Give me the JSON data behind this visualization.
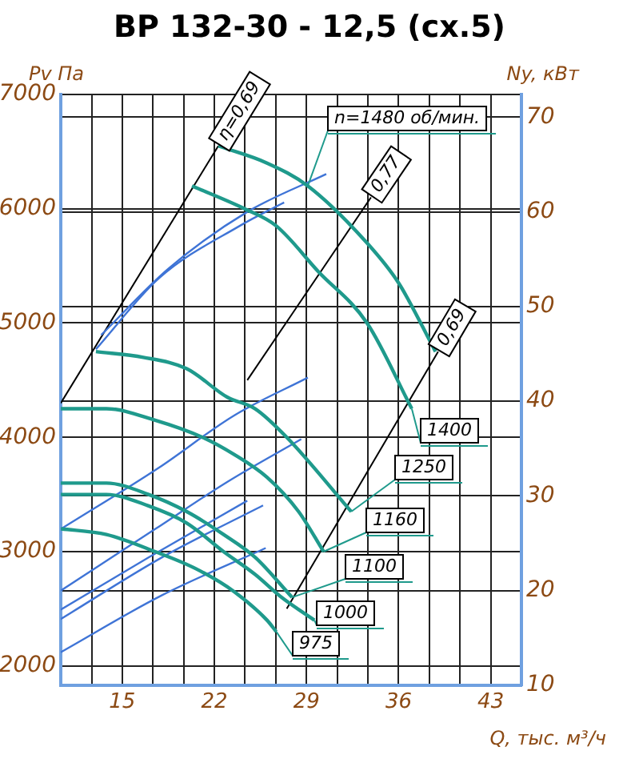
{
  "chart_data": {
    "type": "line",
    "title": "ВР 132-30 - 12,5 (сх.5)",
    "xlabel": "Q, тыс. м³/ч",
    "ylabel": "Pv Па",
    "y2label": "Ny, кВт",
    "xlim": [
      10.33,
      45.33
    ],
    "xticks": [
      {
        "value": 12.67,
        "label": null
      },
      15,
      {
        "value": 17.33,
        "label": null
      },
      {
        "value": 19.67,
        "label": null
      },
      22,
      {
        "value": 24.33,
        "label": null
      },
      {
        "value": 26.67,
        "label": null
      },
      29,
      {
        "value": 31.33,
        "label": null
      },
      {
        "value": 33.67,
        "label": null
      },
      36,
      {
        "value": 38.33,
        "label": null
      },
      {
        "value": 40.67,
        "label": null
      },
      43
    ],
    "ylim": [
      1830,
      7000
    ],
    "yticks": [
      2000,
      3000,
      4000,
      5000,
      6000,
      7000
    ],
    "y2lim": [
      10,
      72.4
    ],
    "y2ticks": [
      10,
      20,
      30,
      40,
      50,
      60,
      70
    ],
    "grid": true,
    "marker": "none",
    "legend": "bottom right",
    "series": [
      {
        "name": "n=1480 об/мин.",
        "color": "#1f9a8c",
        "x": [
          22.3,
          26.0,
          29.1,
          33.6,
          36.0,
          38.8
        ],
        "values": [
          6550,
          6400,
          6200,
          5700,
          5350,
          4750
        ]
      },
      {
        "name": "1400",
        "color": "#1f9a8c",
        "x": [
          20.3,
          24.3,
          26.7,
          29.9,
          33.6,
          37.0
        ],
        "values": [
          6200,
          6000,
          5850,
          5450,
          5000,
          4250
        ]
      },
      {
        "name": "1250",
        "color": "#1f9a8c",
        "x": [
          13.0,
          16.6,
          19.9,
          23.0,
          25.1,
          27.5,
          32.4
        ],
        "values": [
          4750,
          4700,
          4600,
          4350,
          4250,
          4000,
          3350
        ]
      },
      {
        "name": "1160",
        "color": "#1f9a8c",
        "x": [
          10.33,
          13.8,
          17.5,
          21.1,
          23.5,
          26.0,
          28.4,
          30.3
        ],
        "values": [
          4250,
          4250,
          4150,
          4000,
          3850,
          3650,
          3350,
          3000
        ]
      },
      {
        "name": "1100",
        "color": "#1f9a8c",
        "x": [
          10.33,
          13.8,
          17.0,
          19.9,
          22.7,
          25.1,
          27.9
        ],
        "values": [
          3600,
          3600,
          3500,
          3350,
          3150,
          2950,
          2600
        ]
      },
      {
        "name": "1000",
        "color": "#1f9a8c",
        "x": [
          10.33,
          13.8,
          17.0,
          19.9,
          22.7,
          25.1,
          27.1,
          29.6
        ],
        "values": [
          3500,
          3500,
          3400,
          3250,
          3000,
          2800,
          2600,
          2400
        ]
      },
      {
        "name": "975",
        "color": "#1f9a8c",
        "x": [
          10.33,
          13.8,
          17.5,
          20.6,
          23.5,
          26.0,
          26.7
        ],
        "values": [
          3200,
          3150,
          3000,
          2850,
          2650,
          2400,
          2300
        ]
      },
      {
        "color": "#3f74d6",
        "axis": "y2",
        "x": [
          13.0,
          17.8,
          23.9,
          27.3
        ],
        "values": [
          45.5,
          53,
          58.5,
          61
        ]
      },
      {
        "color": "#3f74d6",
        "axis": "y2",
        "x": [
          13.4,
          18.5,
          24.5,
          30.5
        ],
        "values": [
          47,
          54,
          60,
          64
        ]
      },
      {
        "color": "#3f74d6",
        "axis": "y2",
        "x": [
          10.33,
          17.8,
          23.5,
          29.1
        ],
        "values": [
          26.5,
          33,
          38.5,
          42.5
        ]
      },
      {
        "color": "#3f74d6",
        "axis": "y2",
        "x": [
          10.33,
          17.5,
          23.0,
          28.6
        ],
        "values": [
          20,
          26.5,
          31.5,
          36
        ]
      },
      {
        "color": "#3f74d6",
        "axis": "y2",
        "x": [
          10.33,
          17.0,
          24.5
        ],
        "values": [
          18,
          23.5,
          29.5
        ]
      },
      {
        "color": "#3f74d6",
        "axis": "y2",
        "x": [
          10.33,
          18.0,
          25.7
        ],
        "values": [
          17,
          23.5,
          29
        ]
      },
      {
        "color": "#3f74d6",
        "axis": "y2",
        "x": [
          10.33,
          18.0,
          25.9
        ],
        "values": [
          13.5,
          19.5,
          24.5
        ]
      },
      {
        "name": "η=0,69",
        "color": "#000000",
        "x": [
          10.33,
          22.3
        ],
        "values": [
          4300,
          6550
        ]
      },
      {
        "name": "0,77",
        "color": "#000000",
        "x": [
          24.5,
          33.9
        ],
        "values": [
          4500,
          6100
        ]
      },
      {
        "name": "0,69",
        "color": "#000000",
        "x": [
          27.5,
          39.0
        ],
        "values": [
          2500,
          4750
        ]
      }
    ]
  }
}
